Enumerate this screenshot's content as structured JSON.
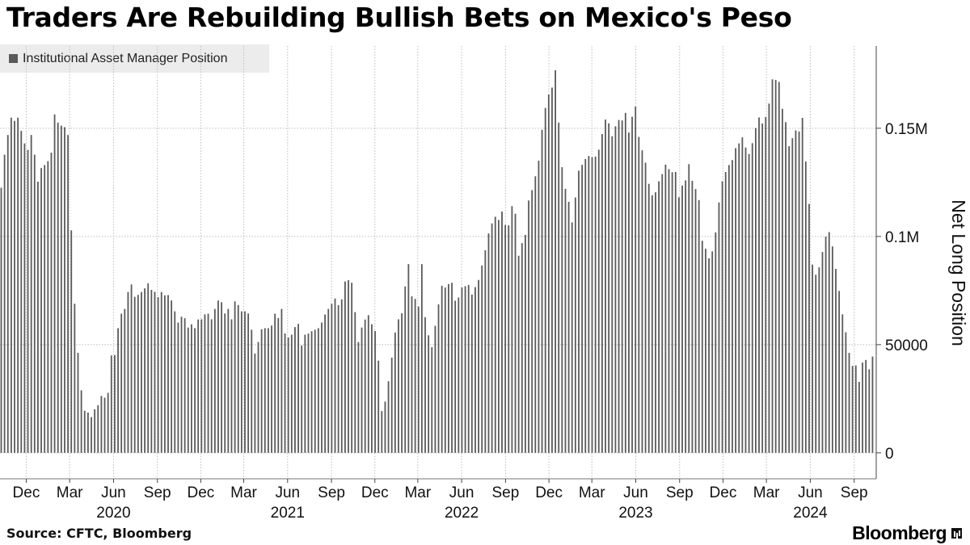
{
  "title": "Traders Are Rebuilding Bullish Bets on Mexico's Peso",
  "source": "Source: CFTC, Bloomberg",
  "brand": "Bloomberg",
  "brand_icon": "bloomberg-terminal-icon",
  "colors": {
    "bar": "#5a5a5a",
    "grid": "#bdbdbd",
    "axis": "#444444",
    "legend_bg": "#ececec"
  },
  "chart_data": {
    "type": "bar",
    "frequency": "weekly",
    "start_date": "2019-10-08",
    "legend": [
      "Institutional Asset Manager Position"
    ],
    "ylabel": "Net Long Position",
    "ylim": [
      -12000,
      188000
    ],
    "y_ticks": [
      {
        "value": 0,
        "label": "0"
      },
      {
        "value": 50000,
        "label": "50000"
      },
      {
        "value": 100000,
        "label": "0.1M"
      },
      {
        "value": 150000,
        "label": "0.15M"
      }
    ],
    "x_ticks": [
      {
        "date": "2019-12-01",
        "label": "Dec"
      },
      {
        "date": "2020-03-01",
        "label": "Mar"
      },
      {
        "date": "2020-06-01",
        "label": "Jun"
      },
      {
        "date": "2020-09-01",
        "label": "Sep"
      },
      {
        "date": "2020-12-01",
        "label": "Dec"
      },
      {
        "date": "2021-03-01",
        "label": "Mar"
      },
      {
        "date": "2021-06-01",
        "label": "Jun"
      },
      {
        "date": "2021-09-01",
        "label": "Sep"
      },
      {
        "date": "2021-12-01",
        "label": "Dec"
      },
      {
        "date": "2022-03-01",
        "label": "Mar"
      },
      {
        "date": "2022-06-01",
        "label": "Jun"
      },
      {
        "date": "2022-09-01",
        "label": "Sep"
      },
      {
        "date": "2022-12-01",
        "label": "Dec"
      },
      {
        "date": "2023-03-01",
        "label": "Mar"
      },
      {
        "date": "2023-06-01",
        "label": "Jun"
      },
      {
        "date": "2023-09-01",
        "label": "Sep"
      },
      {
        "date": "2023-12-01",
        "label": "Dec"
      },
      {
        "date": "2024-03-01",
        "label": "Mar"
      },
      {
        "date": "2024-06-01",
        "label": "Jun"
      },
      {
        "date": "2024-09-01",
        "label": "Sep"
      }
    ],
    "year_labels": [
      {
        "date": "2020-06-01",
        "label": "2020"
      },
      {
        "date": "2021-06-01",
        "label": "2021"
      },
      {
        "date": "2022-06-01",
        "label": "2022"
      },
      {
        "date": "2023-06-01",
        "label": "2023"
      },
      {
        "date": "2024-06-01",
        "label": "2024"
      }
    ],
    "values": [
      122500,
      137800,
      146900,
      154900,
      153400,
      154900,
      148800,
      143000,
      140000,
      146900,
      137800,
      125300,
      131600,
      133000,
      134800,
      138700,
      156400,
      152600,
      151200,
      150500,
      146900,
      102800,
      68900,
      46200,
      28900,
      19400,
      18600,
      16500,
      20100,
      22000,
      26300,
      25500,
      27700,
      45000,
      45200,
      57600,
      64300,
      66500,
      74300,
      77800,
      72100,
      73000,
      74300,
      76000,
      78300,
      75300,
      74400,
      71900,
      74300,
      72800,
      72900,
      70400,
      65400,
      60200,
      62900,
      62200,
      57900,
      59400,
      57600,
      61600,
      61700,
      64000,
      64300,
      61700,
      66500,
      70400,
      69600,
      64400,
      66500,
      61700,
      70000,
      68300,
      65400,
      65400,
      64400,
      56900,
      45900,
      51200,
      57100,
      57600,
      57600,
      58800,
      64300,
      62300,
      66500,
      55200,
      53300,
      54600,
      58100,
      59600,
      49600,
      54600,
      55100,
      56200,
      56900,
      57600,
      60200,
      63900,
      66500,
      68900,
      71300,
      68300,
      70900,
      79200,
      79800,
      78600,
      65000,
      51200,
      57900,
      61600,
      63600,
      59400,
      56300,
      42600,
      19300,
      23700,
      33100,
      44000,
      55600,
      61700,
      64500,
      76900,
      87200,
      72300,
      71100,
      67600,
      87200,
      62700,
      54300,
      48800,
      58700,
      68600,
      77200,
      76400,
      78000,
      78600,
      70300,
      71800,
      76400,
      77000,
      77600,
      73100,
      76600,
      79900,
      86600,
      93600,
      101400,
      106000,
      109100,
      107600,
      111500,
      105300,
      105100,
      114000,
      110500,
      91100,
      96900,
      100700,
      116600,
      121400,
      127800,
      135000,
      149300,
      159400,
      165600,
      168800,
      176800,
      152600,
      132000,
      122000,
      116000,
      106500,
      118000,
      130400,
      133100,
      135800,
      137200,
      136600,
      136900,
      140100,
      147300,
      154000,
      152300,
      146300,
      150900,
      153800,
      153600,
      157100,
      148000,
      155300,
      160000,
      146000,
      139800,
      134100,
      124300,
      119000,
      120400,
      125500,
      128800,
      133200,
      131100,
      129700,
      129800,
      118100,
      123500,
      125900,
      133400,
      125700,
      121900,
      116800,
      98000,
      94300,
      89900,
      93100,
      101900,
      115700,
      125500,
      129800,
      133000,
      135300,
      140800,
      143000,
      145800,
      141100,
      138100,
      143100,
      150100,
      155000,
      152200,
      155200,
      161400,
      172600,
      172300,
      171400,
      159000,
      152800,
      141700,
      145400,
      149000,
      148500,
      154800,
      134600,
      115000,
      87000,
      82300,
      85700,
      92800,
      99900,
      102000,
      95400,
      85000,
      74800,
      64000,
      55700,
      46200,
      40200,
      40400,
      32800,
      41700,
      42900,
      38600,
      44500
    ]
  }
}
